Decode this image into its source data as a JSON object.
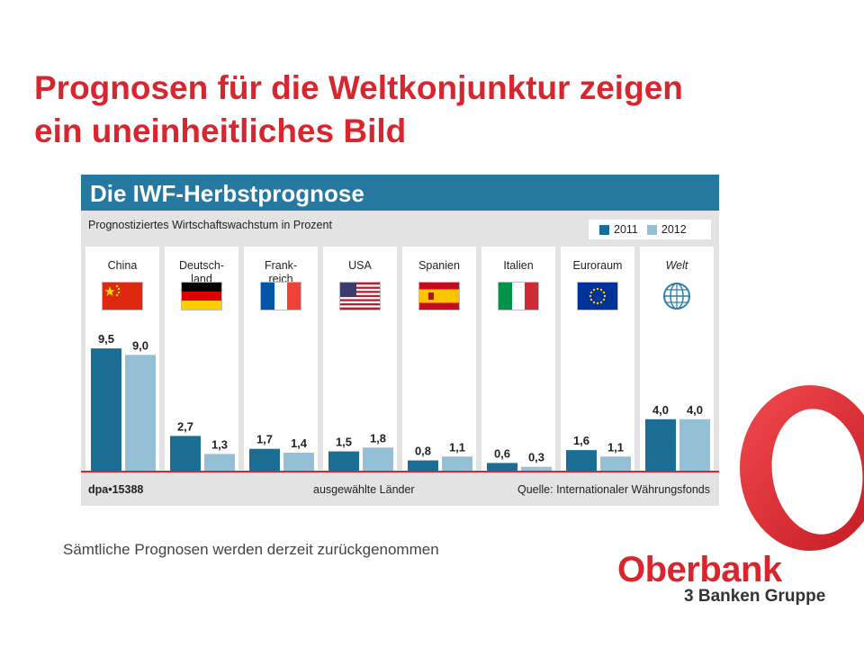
{
  "slide": {
    "title_line1": "Prognosen für die Weltkonjunktur zeigen",
    "title_line2": "ein uneinheitliches Bild",
    "caption": "Sämtliche Prognosen werden derzeit zurückgenommen"
  },
  "logo": {
    "name": "Oberbank",
    "tagline": "3 Banken Gruppe"
  },
  "colors": {
    "title_red": "#d8262e",
    "header_blue": "#2578a0",
    "series_2011": "#1c6d93",
    "series_2012": "#95bfd4"
  },
  "chart_data": {
    "type": "bar",
    "title": "Die IWF-Herbstprognose",
    "subtitle": "Prognostiziertes Wirtschaftswachstum in Prozent",
    "categories": [
      "China",
      "Deutsch-land",
      "Frank-reich",
      "USA",
      "Spanien",
      "Italien",
      "Euroraum",
      "Welt"
    ],
    "category_icons": [
      "china-flag",
      "germany-flag",
      "france-flag",
      "usa-flag",
      "spain-flag",
      "italy-flag",
      "eu-flag",
      "globe-icon"
    ],
    "series": [
      {
        "name": "2011",
        "values": [
          9.5,
          2.7,
          1.7,
          1.5,
          0.8,
          0.6,
          1.6,
          4.0
        ],
        "labels": [
          "9,5",
          "2,7",
          "1,7",
          "1,5",
          "0,8",
          "0,6",
          "1,6",
          "4,0"
        ]
      },
      {
        "name": "2012",
        "values": [
          9.0,
          1.3,
          1.4,
          1.8,
          1.1,
          0.3,
          1.1,
          4.0
        ],
        "labels": [
          "9,0",
          "1,3",
          "1,4",
          "1,8",
          "1,1",
          "0,3",
          "1,1",
          "4,0"
        ]
      }
    ],
    "ylim": [
      0,
      10
    ],
    "legend_position": "top-right",
    "xlabel": "ausgewählte Länder",
    "source": "Quelle: Internationaler Währungsfonds",
    "credit": "dpa•15388"
  }
}
